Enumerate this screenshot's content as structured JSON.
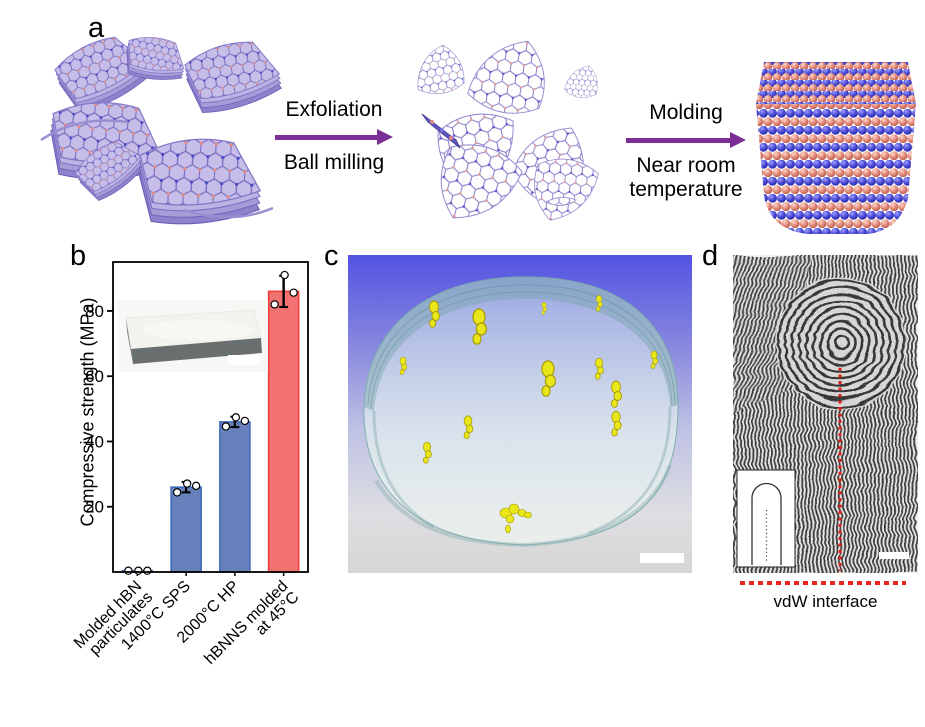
{
  "figure": {
    "panel_a": {
      "letter": "a",
      "step1_label_top": "Exfoliation",
      "step1_label_bottom": "Ball milling",
      "step2_label_top": "Molding",
      "step2_label_bottom_line1": "Near room",
      "step2_label_bottom_line2": "temperature",
      "arrow_color": "#7B2E93"
    },
    "panel_b": {
      "letter": "b"
    },
    "panel_c": {
      "letter": "c"
    },
    "panel_d": {
      "letter": "d",
      "caption": "vdW interface",
      "interface_line_color": "#E8241F"
    }
  },
  "chart_data": {
    "type": "bar",
    "categories": [
      [
        "Molded hBN",
        "particulates"
      ],
      [
        "1400°C SPS"
      ],
      [
        "2000°C HP"
      ],
      [
        "hBNNS molded",
        "at 45°C"
      ]
    ],
    "values": [
      0.4,
      26,
      46,
      86
    ],
    "errors": [
      0,
      1.6,
      1.6,
      4.8
    ],
    "points": [
      [
        0.4,
        0.4,
        0.4
      ],
      [
        24.4,
        27.1,
        26.4
      ],
      [
        44.6,
        47.4,
        46.3
      ],
      [
        82,
        91,
        85.6
      ]
    ],
    "bar_colors": [
      "#6880BC",
      "#6880BC",
      "#6880BC",
      "#F27272"
    ],
    "bar_edge_colors": [
      "#3E6BB8",
      "#3E6BB8",
      "#3E6BB8",
      "#EE3B3B"
    ],
    "title": "",
    "xlabel": "",
    "ylabel": "Compressive strength (MPa)",
    "yticks": [
      20,
      40,
      60,
      80
    ],
    "ylim": [
      0,
      95
    ],
    "grid": false,
    "legend": "none"
  }
}
